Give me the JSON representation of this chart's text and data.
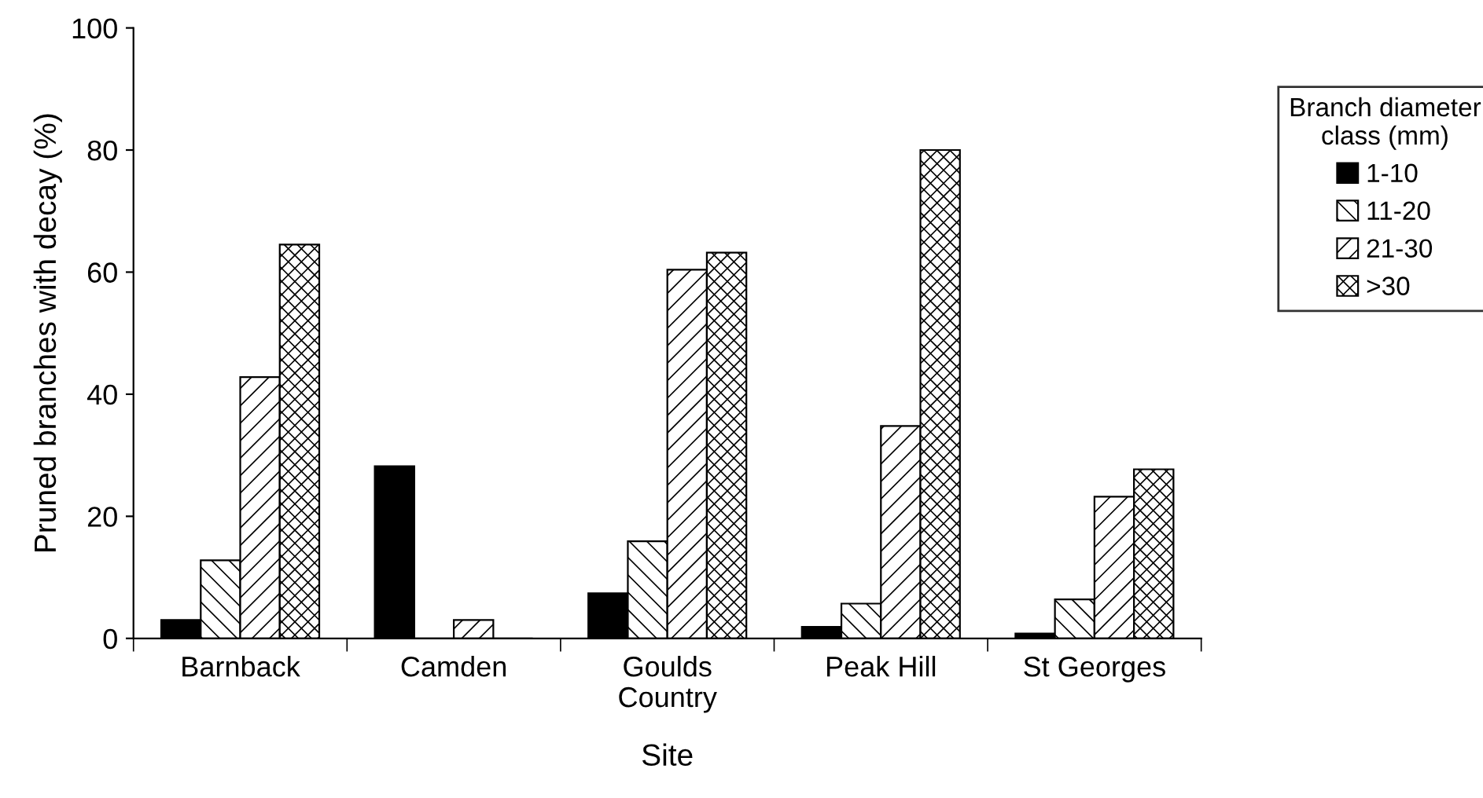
{
  "chart_data": {
    "type": "bar",
    "xlabel": "Site",
    "ylabel": "Pruned branches with decay (%)",
    "legend_title": "Branch diameter\nclass (mm)",
    "categories": [
      "Barnback",
      "Camden",
      "Goulds\nCountry",
      "Peak Hill",
      "St Georges"
    ],
    "series": [
      {
        "name": "1-10",
        "color": "#000000",
        "values": [
          3.0,
          28.2,
          7.4,
          1.9,
          0.8
        ]
      },
      {
        "name": "11-20",
        "color": "#000000",
        "values": [
          12.8,
          0,
          15.9,
          5.7,
          6.4
        ]
      },
      {
        "name": "21-30",
        "color": "#000000",
        "values": [
          42.8,
          3.0,
          60.4,
          34.8,
          23.2
        ]
      },
      {
        "name": ">30",
        "color": "#000000",
        "values": [
          64.5,
          0,
          63.2,
          80.0,
          27.7
        ]
      }
    ],
    "ylim": [
      0,
      100
    ],
    "yticks": [
      0,
      20,
      40,
      60,
      80,
      100
    ],
    "grid": false,
    "legend": "right"
  }
}
